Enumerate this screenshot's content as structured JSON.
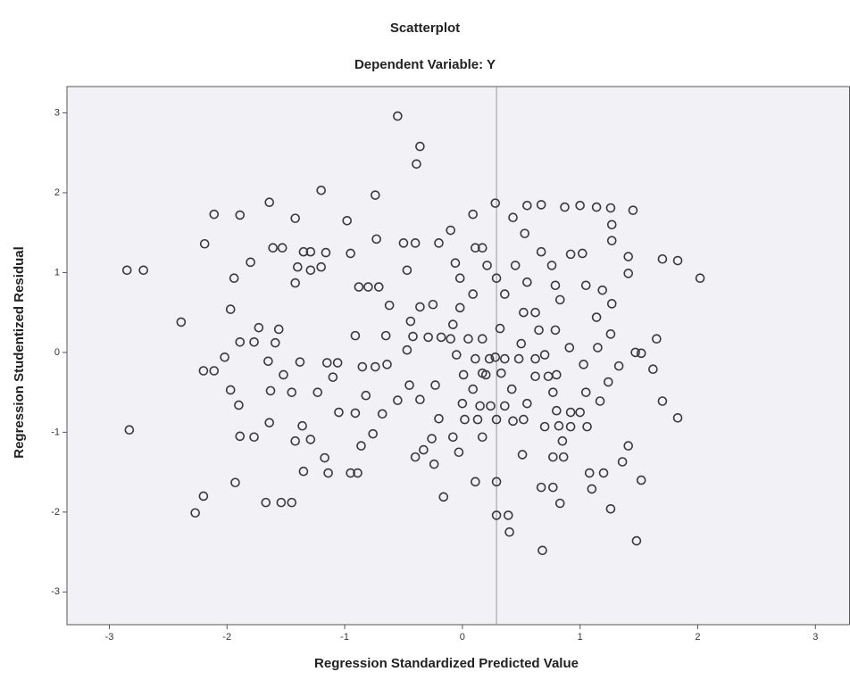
{
  "chart_data": {
    "type": "scatter",
    "title": "Scatterplot",
    "subtitle": "Dependent Variable: Y",
    "xlabel": "Regression Standardized Predicted Value",
    "ylabel": "Regression Studentized Residual",
    "xlim": [
      -3.36,
      3.29
    ],
    "ylim": [
      -3.41,
      3.33
    ],
    "xticks": [
      -3,
      -2,
      -1,
      0,
      1,
      2,
      3
    ],
    "yticks": [
      -3,
      -2,
      -1,
      0,
      1,
      2,
      3
    ],
    "ref_x": 0.29,
    "color": "#3a3a3a",
    "background": "#f1f1f6",
    "x": [
      -2.85,
      -2.71,
      -2.83,
      -2.39,
      -2.27,
      -2.2,
      -2.19,
      -2.11,
      -1.89,
      -1.94,
      -1.97,
      -2.02,
      -2.11,
      -2.2,
      -1.97,
      -1.9,
      -1.93,
      -1.89,
      -1.77,
      -1.8,
      -1.64,
      -1.89,
      -1.77,
      -1.73,
      -1.56,
      -1.65,
      -1.63,
      -1.64,
      -1.67,
      -1.54,
      -1.45,
      -1.61,
      -1.53,
      -1.42,
      -1.59,
      -1.45,
      -1.52,
      -1.42,
      -1.36,
      -1.35,
      -1.29,
      -1.4,
      -1.42,
      -1.35,
      -1.29,
      -1.29,
      -1.38,
      -1.2,
      -1.16,
      -1.2,
      -1.23,
      -1.17,
      -1.14,
      -1.15,
      -1.1,
      -1.06,
      -0.98,
      -0.95,
      -1.05,
      -0.95,
      -0.89,
      -0.91,
      -0.86,
      -0.91,
      -0.88,
      -0.8,
      -0.71,
      -0.85,
      -0.74,
      -0.82,
      -0.74,
      -0.73,
      -0.76,
      -0.68,
      -0.65,
      -0.62,
      -0.64,
      -0.55,
      -0.36,
      -0.39,
      -0.5,
      -0.4,
      -0.47,
      -0.44,
      -0.42,
      -0.47,
      -0.55,
      -0.45,
      -0.36,
      -0.4,
      -0.36,
      -0.25,
      -0.29,
      -0.18,
      -0.23,
      -0.26,
      -0.33,
      -0.24,
      -0.2,
      -0.16,
      -0.2,
      -0.1,
      -0.06,
      -0.02,
      -0.08,
      -0.02,
      -0.05,
      0.01,
      0,
      0.02,
      -0.08,
      -0.03,
      0.09,
      0.11,
      0.09,
      0.17,
      0.11,
      0.17,
      0.13,
      0.17,
      0.11,
      0.21,
      0.28,
      0.29,
      0.29,
      0.39,
      0.4,
      0.29,
      0.36,
      0.32,
      0.28,
      0.33,
      0.42,
      0.29,
      0.43,
      0.55,
      0.53,
      0.45,
      0.55,
      0.52,
      0.5,
      0.48,
      0.55,
      0.52,
      0.51,
      0.67,
      0.67,
      0.62,
      0.65,
      0.7,
      0.67,
      0.68,
      0.77,
      0.83,
      0.77,
      0.76,
      0.79,
      0.83,
      0.79,
      0.8,
      0.77,
      0.8,
      0.82,
      0.85,
      0.86,
      0.87,
      0.92,
      0.91,
      1,
      1.02,
      1.05,
      1.03,
      1.05,
      1.06,
      1.08,
      1.1,
      1.14,
      1.14,
      1.15,
      1.17,
      1.2,
      1.26,
      1.27,
      1.27,
      1.27,
      1.26,
      1.24,
      1.26,
      1.33,
      1.36,
      1.41,
      1.41,
      1.45,
      1.47,
      1.41,
      1.48,
      1.52,
      1.52,
      1.62,
      1.65,
      1.7,
      1.7,
      1.83,
      1.83,
      2.02,
      1.19,
      0.17,
      0.05,
      -0.1,
      0.23,
      0.36,
      0.62,
      0.62,
      0.73,
      0.92,
      1,
      0.15,
      0.24,
      0.36,
      0.43,
      0.7,
      0.92,
      0.09,
      0.2
    ],
    "y": [
      1.03,
      1.03,
      -0.97,
      0.38,
      -2.01,
      -1.8,
      1.36,
      1.73,
      1.72,
      0.93,
      0.54,
      -0.06,
      -0.23,
      -0.23,
      -0.47,
      -0.66,
      -1.63,
      -1.05,
      -1.06,
      1.13,
      1.88,
      0.13,
      0.13,
      0.31,
      0.29,
      -0.11,
      -0.48,
      -0.88,
      -1.88,
      -1.88,
      -1.88,
      1.31,
      1.31,
      1.68,
      0.12,
      -0.5,
      -0.28,
      -1.11,
      -0.92,
      -1.49,
      -1.09,
      1.07,
      0.87,
      1.26,
      1.03,
      1.26,
      -0.12,
      2.03,
      1.25,
      1.07,
      -0.5,
      -1.32,
      -1.51,
      -0.13,
      -0.31,
      -0.13,
      1.65,
      1.24,
      -0.75,
      -1.51,
      -1.51,
      -0.76,
      -1.17,
      0.21,
      0.82,
      0.82,
      0.82,
      -0.18,
      -0.18,
      -0.54,
      1.97,
      1.42,
      -1.02,
      -0.77,
      0.21,
      0.59,
      -0.15,
      2.96,
      2.58,
      2.36,
      1.37,
      1.37,
      1.03,
      0.39,
      0.2,
      0.03,
      -0.6,
      -0.41,
      -0.59,
      -1.31,
      0.57,
      0.6,
      0.19,
      0.19,
      -0.41,
      -1.08,
      -1.22,
      -1.4,
      -0.83,
      -1.81,
      1.37,
      1.53,
      1.12,
      0.93,
      0.35,
      0.56,
      -0.03,
      -0.28,
      -0.64,
      -0.84,
      -1.06,
      -1.25,
      1.73,
      1.31,
      0.73,
      1.31,
      -0.08,
      -0.26,
      -0.84,
      -1.06,
      -1.62,
      1.09,
      1.87,
      -1.62,
      -2.04,
      -2.04,
      -2.25,
      0.93,
      0.73,
      0.3,
      -0.06,
      -0.26,
      -0.46,
      -0.84,
      1.69,
      1.84,
      1.49,
      1.09,
      0.88,
      0.5,
      0.11,
      -0.08,
      -0.64,
      -0.84,
      -1.28,
      1.85,
      1.26,
      0.5,
      0.28,
      -0.03,
      -1.69,
      -2.48,
      -1.69,
      -1.89,
      -1.31,
      1.09,
      0.84,
      0.66,
      0.28,
      -0.28,
      -0.5,
      -0.73,
      -0.92,
      -1.11,
      -1.31,
      1.82,
      1.23,
      0.06,
      1.84,
      1.24,
      0.84,
      -0.15,
      -0.5,
      -0.93,
      -1.51,
      -1.71,
      1.82,
      0.44,
      0.06,
      -0.61,
      -1.51,
      1.81,
      1.6,
      1.4,
      0.61,
      0.23,
      -0.37,
      -1.96,
      -0.17,
      -1.37,
      0.99,
      1.2,
      1.78,
      0,
      -1.17,
      -2.36,
      -1.6,
      -0.01,
      -0.21,
      0.17,
      1.17,
      -0.61,
      1.15,
      -0.82,
      0.93,
      0.78,
      0.17,
      0.17,
      0.17,
      -0.08,
      -0.08,
      -0.08,
      -0.3,
      -0.3,
      -0.75,
      -0.75,
      -0.67,
      -0.67,
      -0.67,
      -0.86,
      -0.93,
      -0.93,
      -0.46,
      -0.28
    ]
  }
}
